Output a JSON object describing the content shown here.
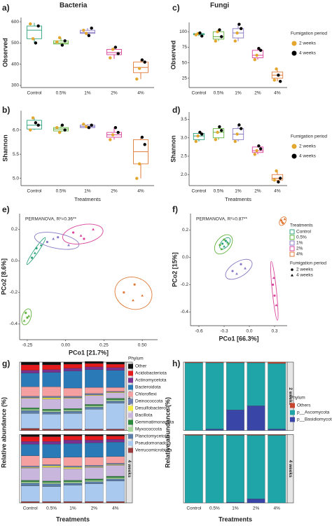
{
  "chart_data": [
    {
      "type": "box",
      "panel": "a)",
      "title": "Bacteria",
      "ylabel": "Observed",
      "categories": [
        "Control",
        "0.5%",
        "1%",
        "2%",
        "4%"
      ],
      "colors": [
        "#2fa37d",
        "#62b33d",
        "#8a78c4",
        "#d9449c",
        "#e07b39"
      ],
      "ylim": [
        290,
        620
      ],
      "yticks": [
        300,
        400,
        500,
        600
      ],
      "boxes": [
        {
          "min": 500,
          "q1": 520,
          "median": 560,
          "q3": 580,
          "max": 595
        },
        {
          "min": 490,
          "q1": 495,
          "median": 500,
          "q3": 510,
          "max": 525
        },
        {
          "min": 535,
          "q1": 545,
          "median": 550,
          "q3": 560,
          "max": 570
        },
        {
          "min": 425,
          "q1": 445,
          "median": 455,
          "q3": 470,
          "max": 480
        },
        {
          "min": 330,
          "q1": 360,
          "median": 385,
          "q3": 410,
          "max": 420
        }
      ],
      "series": [
        {
          "color": "#e3a72f",
          "values": [
            [
              590,
              520
            ],
            [
              505,
              525
            ],
            [
              560,
              545
            ],
            [
              430,
              470
            ],
            [
              330,
              380
            ]
          ]
        },
        {
          "color": "#000000",
          "values": [
            [
              500,
              580
            ],
            [
              490,
              510
            ],
            [
              535,
              570
            ],
            [
              480,
              450
            ],
            [
              420,
              410
            ]
          ]
        }
      ]
    },
    {
      "type": "box",
      "panel": "b)",
      "ylabel": "Shannon",
      "xlabel": "Treatments",
      "categories": [
        "Control",
        "0.5%",
        "1%",
        "2%",
        "4%"
      ],
      "colors": [
        "#2fa37d",
        "#62b33d",
        "#8a78c4",
        "#d9449c",
        "#e07b39"
      ],
      "ylim": [
        4.85,
        6.4
      ],
      "yticks": [
        {
          "value": 5,
          "label": "5.0"
        },
        5.5,
        {
          "value": 6,
          "label": "6.0"
        }
      ],
      "boxes": [
        {
          "min": 6.0,
          "q1": 6.02,
          "median": 6.1,
          "q3": 6.2,
          "max": 6.25
        },
        {
          "min": 5.95,
          "q1": 5.98,
          "median": 6.02,
          "q3": 6.05,
          "max": 6.1
        },
        {
          "min": 6.03,
          "q1": 6.05,
          "median": 6.07,
          "q3": 6.1,
          "max": 6.12
        },
        {
          "min": 5.8,
          "q1": 5.85,
          "median": 5.9,
          "q3": 5.95,
          "max": 6.05
        },
        {
          "min": 5.0,
          "q1": 5.3,
          "median": 5.55,
          "q3": 5.8,
          "max": 5.85
        }
      ],
      "series": [
        {
          "color": "#e3a72f",
          "values": [
            [
              6.0,
              6.25
            ],
            [
              6.05,
              5.95
            ],
            [
              6.12,
              6.07
            ],
            [
              5.8,
              5.9
            ],
            [
              5.0,
              5.3
            ]
          ]
        },
        {
          "color": "#000000",
          "values": [
            [
              6.15,
              6.1
            ],
            [
              6.1,
              6.0
            ],
            [
              6.05,
              6.1
            ],
            [
              6.05,
              5.95
            ],
            [
              5.85,
              5.7
            ]
          ]
        }
      ]
    },
    {
      "type": "box",
      "panel": "c)",
      "title": "Fungi",
      "ylabel": "Observed",
      "categories": [
        "Control",
        "0.5%",
        "1%",
        "2%",
        "4%"
      ],
      "colors": [
        "#2fa37d",
        "#62b33d",
        "#8a78c4",
        "#d9449c",
        "#e07b39"
      ],
      "ylim": [
        10,
        115
      ],
      "yticks": [
        25,
        50,
        75,
        100
      ],
      "boxes": [
        {
          "min": 93,
          "q1": 95,
          "median": 96,
          "q3": 97,
          "max": 98
        },
        {
          "min": 85,
          "q1": 88,
          "median": 92,
          "q3": 100,
          "max": 103
        },
        {
          "min": 85,
          "q1": 90,
          "median": 98,
          "q3": 105,
          "max": 112
        },
        {
          "min": 55,
          "q1": 58,
          "median": 62,
          "q3": 70,
          "max": 73
        },
        {
          "min": 20,
          "q1": 25,
          "median": 30,
          "q3": 35,
          "max": 40
        }
      ],
      "legend_title": "Fumigation period",
      "series": [
        {
          "name": "2 weeks",
          "color": "#e3a72f",
          "values": [
            [
              95,
              97
            ],
            [
              85,
              100
            ],
            [
              85,
              98
            ],
            [
              55,
              62
            ],
            [
              22,
              40
            ]
          ]
        },
        {
          "name": "4 weeks",
          "color": "#000000",
          "values": [
            [
              98,
              93
            ],
            [
              103,
              92
            ],
            [
              112,
              105
            ],
            [
              73,
              70
            ],
            [
              30,
              20
            ]
          ]
        }
      ]
    },
    {
      "type": "box",
      "panel": "d)",
      "ylabel": "Shannon",
      "xlabel": "Treatments",
      "categories": [
        "Control",
        "0.5%",
        "1%",
        "2%",
        "4%"
      ],
      "colors": [
        "#2fa37d",
        "#62b33d",
        "#8a78c4",
        "#d9449c",
        "#e07b39"
      ],
      "ylim": [
        1.7,
        3.7
      ],
      "yticks": [
        {
          "value": 2,
          "label": "2.0"
        },
        2.5,
        {
          "value": 3,
          "label": "3.0"
        },
        3.5
      ],
      "boxes": [
        {
          "min": 2.9,
          "q1": 2.95,
          "median": 3.05,
          "q3": 3.12,
          "max": 3.15
        },
        {
          "min": 2.95,
          "q1": 3.0,
          "median": 3.15,
          "q3": 3.25,
          "max": 3.3
        },
        {
          "min": 2.9,
          "q1": 2.95,
          "median": 3.1,
          "q3": 3.25,
          "max": 3.35
        },
        {
          "min": 2.55,
          "q1": 2.6,
          "median": 2.65,
          "q3": 2.75,
          "max": 2.78
        },
        {
          "min": 1.8,
          "q1": 1.85,
          "median": 1.9,
          "q3": 2.0,
          "max": 2.1
        }
      ],
      "legend_title": "Fumigation period",
      "series": [
        {
          "name": "2 weeks",
          "color": "#e3a72f",
          "values": [
            [
              2.9,
              3.05
            ],
            [
              2.95,
              3.15
            ],
            [
              2.9,
              3.1
            ],
            [
              2.55,
              2.65
            ],
            [
              1.85,
              2.1
            ]
          ]
        },
        {
          "name": "4 weeks",
          "color": "#000000",
          "values": [
            [
              3.15,
              3.1
            ],
            [
              3.3,
              3.2
            ],
            [
              3.35,
              3.25
            ],
            [
              2.78,
              2.7
            ],
            [
              1.8,
              1.9
            ]
          ]
        }
      ]
    },
    {
      "type": "scatter",
      "panel": "e)",
      "annotation": "PERMANOVA, R²=0.36**",
      "xlabel": "PCo1 [21.7%]",
      "ylabel": "PCo2 [8.6%]",
      "xlim": [
        -0.3,
        0.6
      ],
      "xticks": [
        -0.25,
        {
          "value": 0,
          "label": "0.00"
        },
        0.25,
        {
          "value": 0.5,
          "label": "0.50"
        }
      ],
      "ylim": [
        -0.5,
        0.3
      ],
      "yticks": [
        -0.4,
        -0.2,
        {
          "value": 0,
          "label": "0.0"
        },
        0.2
      ],
      "series": [
        {
          "color": "#2fa37d",
          "x": [
            -0.22,
            -0.19
          ],
          "y": [
            0.02,
            0.08
          ],
          "tri_x": [
            -0.16,
            -0.2
          ],
          "tri_y": [
            0.1,
            0.05
          ]
        },
        {
          "color": "#62b33d",
          "x": [
            -0.26,
            -0.25
          ],
          "y": [
            -0.33,
            -0.36
          ],
          "tri_x": [
            -0.27,
            -0.24
          ],
          "tri_y": [
            -0.38,
            -0.35
          ]
        },
        {
          "color": "#8a78c4",
          "x": [
            -0.12,
            -0.05
          ],
          "y": [
            0.12,
            0.15
          ],
          "tri_x": [
            0.02,
            -0.08
          ],
          "tri_y": [
            0.1,
            0.14
          ]
        },
        {
          "color": "#d9449c",
          "x": [
            0.05,
            0.12
          ],
          "y": [
            0.18,
            0.14
          ],
          "tri_x": [
            0.18,
            0.1
          ],
          "tri_y": [
            0.2,
            0.16
          ]
        },
        {
          "color": "#e07b39",
          "x": [
            0.38,
            0.45
          ],
          "y": [
            -0.2,
            -0.15
          ],
          "tri_x": [
            0.5,
            0.44
          ],
          "tri_y": [
            -0.22,
            -0.25
          ]
        }
      ]
    },
    {
      "type": "scatter",
      "panel": "f)",
      "annotation": "PERMANOVA, R²=0.87**",
      "xlabel": "PCo1 [66.3%]",
      "ylabel": "PCo2 [15%]",
      "xlim": [
        -0.7,
        0.45
      ],
      "xticks": [
        -0.6,
        -0.3,
        {
          "value": 0,
          "label": "0.0"
        },
        0.3
      ],
      "ylim": [
        -0.5,
        0.32
      ],
      "yticks": [
        -0.4,
        -0.2,
        {
          "value": 0,
          "label": "0.0"
        },
        0.2
      ],
      "legend_title": "Treatments",
      "shape_legend_title": "Fumigation period",
      "shape_legend": [
        "2 weeks",
        "4 weeks"
      ],
      "series": [
        {
          "name": "Control",
          "color": "#2fa37d",
          "x": [
            -0.32,
            -0.28
          ],
          "y": [
            0.1,
            0.12
          ],
          "tri_x": [
            -0.3,
            -0.26
          ],
          "tri_y": [
            0.08,
            0.11
          ]
        },
        {
          "name": "0.5%",
          "color": "#62b33d",
          "x": [
            -0.35,
            -0.3
          ],
          "y": [
            0.09,
            0.13
          ],
          "tri_x": [
            -0.25,
            -0.33
          ],
          "tri_y": [
            0.1,
            0.06
          ]
        },
        {
          "name": "1%",
          "color": "#8a78c4",
          "x": [
            -0.2,
            -0.1
          ],
          "y": [
            -0.1,
            -0.05
          ],
          "tri_x": [
            -0.05,
            -0.15
          ],
          "tri_y": [
            -0.08,
            -0.12
          ]
        },
        {
          "name": "2%",
          "color": "#d9449c",
          "x": [
            0.28,
            0.3
          ],
          "y": [
            -0.2,
            -0.28
          ],
          "tri_x": [
            0.32,
            0.29
          ],
          "tri_y": [
            -0.35,
            -0.15
          ]
        },
        {
          "name": "4%",
          "color": "#e07b39",
          "x": [
            0.38,
            0.4
          ],
          "y": [
            0.27,
            0.25
          ],
          "tri_x": [
            0.42,
            0.39
          ],
          "tri_y": [
            0.28,
            0.26
          ]
        }
      ]
    },
    {
      "type": "stacked",
      "panel": "g)",
      "ylabel": "Relative abundance (%)",
      "xlabel": "Treatments",
      "categories": [
        "Control",
        "0.5%",
        "1%",
        "2%",
        "4%"
      ],
      "ylim": [
        0,
        1
      ],
      "legend_title": "Phylum",
      "series": [
        {
          "name": "Other",
          "color": "#111111"
        },
        {
          "name": "Acidobacteriota",
          "color": "#e41a1c"
        },
        {
          "name": "Actinomycetota",
          "color": "#7b2f8e"
        },
        {
          "name": "Bacteroidota",
          "color": "#2a7ab8"
        },
        {
          "name": "Chloroflexi",
          "color": "#f4a0a0"
        },
        {
          "name": "Deinococcota",
          "color": "#6b7fb0"
        },
        {
          "name": "Desulfobacterota",
          "color": "#f5ee45"
        },
        {
          "name": "Bacillota",
          "color": "#c9b6dc"
        },
        {
          "name": "Gemmatimonadota",
          "color": "#2e8b3e"
        },
        {
          "name": "Myxococcota",
          "color": "#a6d89a"
        },
        {
          "name": "Planctomycetota",
          "color": "#5b7fa8"
        },
        {
          "name": "Pseudomonadota",
          "color": "#a9c9ee"
        },
        {
          "name": "Verrucomicrobiota",
          "color": "#9b3a3a"
        }
      ],
      "facets": [
        {
          "strip": "2 weeks",
          "values": [
            [
              0.04,
              0.04,
              0.03,
              0.03,
              0.03
            ],
            [
              0.08,
              0.07,
              0.06,
              0.05,
              0.05
            ],
            [
              0.04,
              0.04,
              0.04,
              0.04,
              0.04
            ],
            [
              0.2,
              0.21,
              0.25,
              0.26,
              0.25
            ],
            [
              0.14,
              0.14,
              0.12,
              0.09,
              0.06
            ],
            [
              0.02,
              0.02,
              0.02,
              0.02,
              0.01
            ],
            [
              0.01,
              0.02,
              0.01,
              0.01,
              0.01
            ],
            [
              0.14,
              0.15,
              0.15,
              0.13,
              0.08
            ],
            [
              0.02,
              0.02,
              0.02,
              0.02,
              0.02
            ],
            [
              0.02,
              0.02,
              0.02,
              0.02,
              0.02
            ],
            [
              0.04,
              0.03,
              0.03,
              0.03,
              0.03
            ],
            [
              0.22,
              0.22,
              0.23,
              0.29,
              0.38
            ],
            [
              0.03,
              0.02,
              0.02,
              0.02,
              0.02
            ]
          ]
        },
        {
          "strip": "4 weeks",
          "values": [
            [
              0.03,
              0.03,
              0.02,
              0.02,
              0.02
            ],
            [
              0.07,
              0.07,
              0.06,
              0.06,
              0.05
            ],
            [
              0.04,
              0.04,
              0.05,
              0.04,
              0.04
            ],
            [
              0.17,
              0.2,
              0.2,
              0.21,
              0.21
            ],
            [
              0.15,
              0.1,
              0.13,
              0.12,
              0.1
            ],
            [
              0.02,
              0.02,
              0.02,
              0.02,
              0.02
            ],
            [
              0.01,
              0.02,
              0.02,
              0.01,
              0.01
            ],
            [
              0.18,
              0.2,
              0.17,
              0.17,
              0.16
            ],
            [
              0.02,
              0.02,
              0.02,
              0.02,
              0.02
            ],
            [
              0.02,
              0.02,
              0.02,
              0.02,
              0.02
            ],
            [
              0.04,
              0.04,
              0.03,
              0.03,
              0.03
            ],
            [
              0.23,
              0.22,
              0.24,
              0.26,
              0.3
            ],
            [
              0.02,
              0.02,
              0.02,
              0.02,
              0.02
            ]
          ]
        }
      ]
    },
    {
      "type": "stacked",
      "panel": "h)",
      "ylabel": "Relative abundance (%)",
      "xlabel": "Treatments",
      "categories": [
        "Control",
        "0.5%",
        "1%",
        "2%",
        "4%"
      ],
      "ylim": [
        0,
        1
      ],
      "legend_title": "Phylum",
      "series": [
        {
          "name": "Others",
          "color": "#c8452f"
        },
        {
          "name": "p__Ascomycota",
          "color": "#1fa5a8"
        },
        {
          "name": "p__Basidiomycota",
          "color": "#3a45a8"
        }
      ],
      "facets": [
        {
          "strip": "2 weeks",
          "values": [
            [
              0.01,
              0.01,
              0.01,
              0.01,
              0.02
            ],
            [
              0.99,
              0.97,
              0.69,
              0.63,
              0.96
            ],
            [
              0.0,
              0.02,
              0.3,
              0.36,
              0.02
            ]
          ]
        },
        {
          "strip": "4 weeks",
          "values": [
            [
              0.01,
              0.01,
              0.01,
              0.01,
              0.01
            ],
            [
              0.99,
              0.99,
              0.98,
              0.93,
              0.99
            ],
            [
              0.0,
              0.0,
              0.01,
              0.06,
              0.0
            ]
          ]
        }
      ]
    }
  ]
}
